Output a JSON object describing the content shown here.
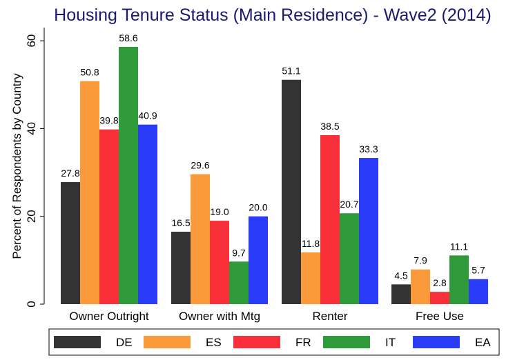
{
  "chart_data": {
    "type": "bar",
    "title": "Housing Tenure Status (Main Residence) - Wave2 (2014)",
    "xlabel": "",
    "ylabel": "Percent of Respondents by Country",
    "ylim": [
      0,
      63
    ],
    "yticks": [
      0,
      20,
      40,
      60
    ],
    "categories": [
      "Owner Outright",
      "Owner with Mtg",
      "Renter",
      "Free Use"
    ],
    "series": [
      {
        "name": "DE",
        "color": "#333333",
        "values": [
          27.8,
          16.5,
          51.1,
          4.5
        ]
      },
      {
        "name": "ES",
        "color": "#fb9a3a",
        "values": [
          50.8,
          29.6,
          11.8,
          7.9
        ]
      },
      {
        "name": "FR",
        "color": "#f8303a",
        "values": [
          39.8,
          19.0,
          38.5,
          2.8
        ]
      },
      {
        "name": "IT",
        "color": "#2f9a3a",
        "values": [
          58.6,
          9.7,
          20.7,
          11.1
        ]
      },
      {
        "name": "EA",
        "color": "#2a3cf7",
        "values": [
          40.9,
          20.0,
          33.3,
          5.7
        ]
      }
    ],
    "legend_position": "bottom",
    "grid": false
  }
}
